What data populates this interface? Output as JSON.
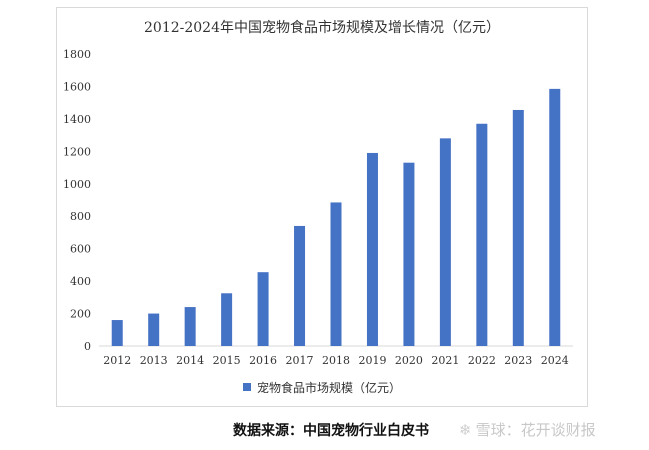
{
  "chart_data": {
    "type": "bar",
    "title": "2012-2024年中国宠物食品市场规模及增长情况（亿元）",
    "categories": [
      "2012",
      "2013",
      "2014",
      "2015",
      "2016",
      "2017",
      "2018",
      "2019",
      "2020",
      "2021",
      "2022",
      "2023",
      "2024"
    ],
    "series": [
      {
        "name": "宠物食品市场规模（亿元）",
        "values": [
          160,
          200,
          240,
          325,
          455,
          740,
          885,
          1190,
          1130,
          1280,
          1370,
          1455,
          1585
        ],
        "color": "#4472c4"
      }
    ],
    "yticks": [
      "0",
      "200",
      "400",
      "600",
      "800",
      "1000",
      "1200",
      "1400",
      "1600",
      "1800"
    ],
    "ylim": [
      0,
      1800
    ],
    "grid": false,
    "legend_position": "bottom"
  },
  "source": "数据来源：中国宠物行业白皮书",
  "watermark": {
    "icon": "snowball-logo-icon",
    "text": "雪球：花开谈财报"
  }
}
